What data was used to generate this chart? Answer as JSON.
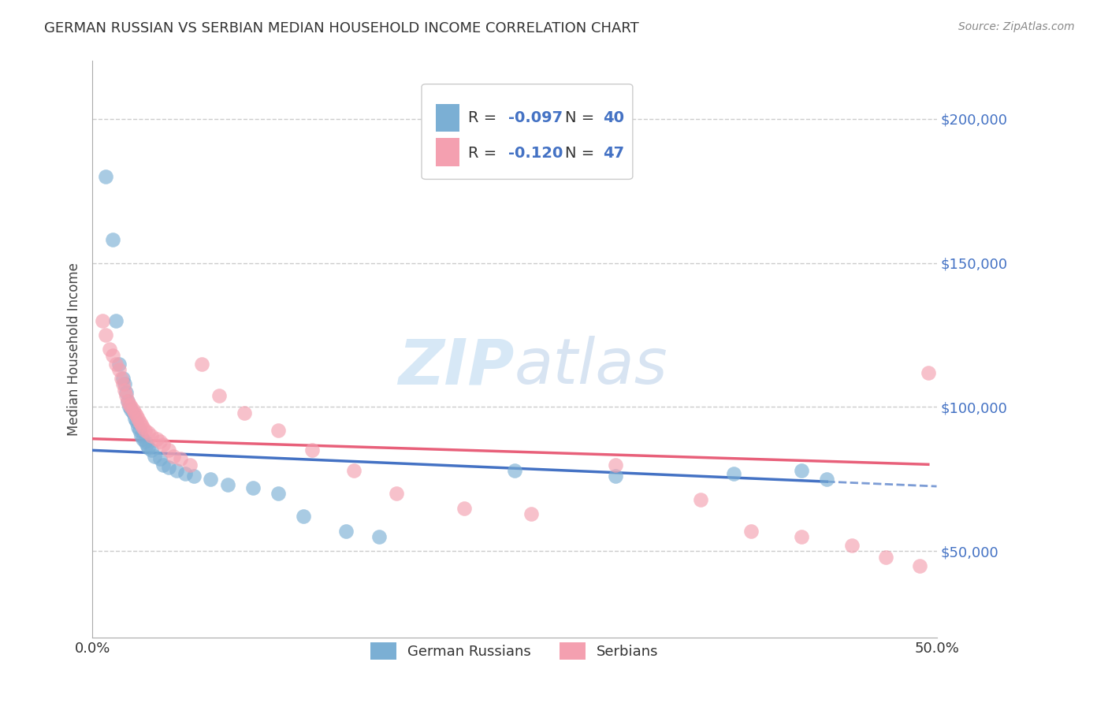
{
  "title": "GERMAN RUSSIAN VS SERBIAN MEDIAN HOUSEHOLD INCOME CORRELATION CHART",
  "source": "Source: ZipAtlas.com",
  "ylabel": "Median Household Income",
  "xlim": [
    0.0,
    0.5
  ],
  "ylim": [
    20000,
    220000
  ],
  "color1": "#7bafd4",
  "color2": "#f4a0b0",
  "trendline1_color": "#4472c4",
  "trendline2_color": "#e8607a",
  "watermark_color": "#d0e4f5",
  "label1": "German Russians",
  "label2": "Serbians",
  "background_color": "#ffffff",
  "gr_x": [
    0.008,
    0.012,
    0.014,
    0.016,
    0.018,
    0.019,
    0.02,
    0.021,
    0.022,
    0.023,
    0.024,
    0.025,
    0.026,
    0.027,
    0.028,
    0.029,
    0.03,
    0.031,
    0.032,
    0.033,
    0.035,
    0.037,
    0.04,
    0.042,
    0.045,
    0.05,
    0.055,
    0.06,
    0.07,
    0.08,
    0.095,
    0.11,
    0.125,
    0.15,
    0.17,
    0.25,
    0.31,
    0.38,
    0.42,
    0.435
  ],
  "gr_y": [
    180000,
    158000,
    130000,
    115000,
    110000,
    108000,
    105000,
    102000,
    100000,
    99000,
    98000,
    96000,
    95000,
    93000,
    92000,
    90000,
    89000,
    88000,
    87000,
    86000,
    85000,
    83000,
    82000,
    80000,
    79000,
    78000,
    77000,
    76000,
    75000,
    73000,
    72000,
    70000,
    62000,
    57000,
    55000,
    78000,
    76000,
    77000,
    78000,
    75000
  ],
  "sr_x": [
    0.006,
    0.008,
    0.01,
    0.012,
    0.014,
    0.016,
    0.017,
    0.018,
    0.019,
    0.02,
    0.021,
    0.022,
    0.023,
    0.024,
    0.025,
    0.026,
    0.027,
    0.028,
    0.029,
    0.03,
    0.031,
    0.033,
    0.035,
    0.038,
    0.04,
    0.042,
    0.045,
    0.048,
    0.052,
    0.058,
    0.065,
    0.075,
    0.09,
    0.11,
    0.13,
    0.155,
    0.18,
    0.22,
    0.26,
    0.31,
    0.36,
    0.39,
    0.42,
    0.45,
    0.47,
    0.49,
    0.495
  ],
  "sr_y": [
    130000,
    125000,
    120000,
    118000,
    115000,
    113000,
    110000,
    108000,
    106000,
    104000,
    102000,
    101000,
    100000,
    99000,
    98000,
    97000,
    96000,
    95000,
    94000,
    93000,
    92000,
    91000,
    90000,
    89000,
    88000,
    87000,
    85000,
    83000,
    82000,
    80000,
    115000,
    104000,
    98000,
    92000,
    85000,
    78000,
    70000,
    65000,
    63000,
    80000,
    68000,
    57000,
    55000,
    52000,
    48000,
    45000,
    112000
  ]
}
